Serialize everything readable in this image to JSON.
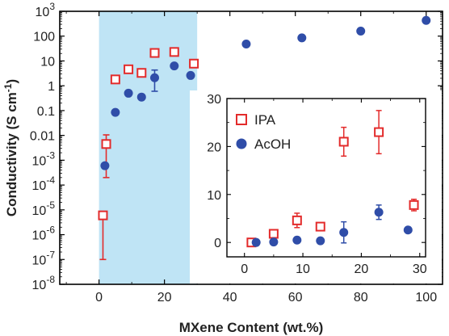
{
  "chart_data": [
    {
      "type": "scatter",
      "xlabel": "MXene Content (wt.%)",
      "ylabel": "Conductivity (S cm",
      "ylabel_sup": "-1",
      "ylabel_close": ")",
      "x_scale": "linear",
      "y_scale": "log",
      "xlim": [
        -12,
        105
      ],
      "ylim_log10": [
        -8,
        3
      ],
      "x_ticks": [
        0,
        20,
        40,
        60,
        80,
        100
      ],
      "x_tick_labels": [
        "0",
        "20",
        "40",
        "60",
        "80",
        "100"
      ],
      "y_ticks_log10": [
        -8,
        -7,
        -6,
        -5,
        -4,
        -3,
        -2,
        -1,
        0,
        1,
        2,
        3
      ],
      "y_tick_labels": [
        {
          "base": "10",
          "sup": "-8"
        },
        {
          "base": "10",
          "sup": "-7"
        },
        {
          "base": "10",
          "sup": "-6"
        },
        {
          "base": "10",
          "sup": "-5"
        },
        {
          "base": "10",
          "sup": "-4"
        },
        {
          "base": "10",
          "sup": "-3"
        },
        {
          "base": "0.01",
          "sup": ""
        },
        {
          "base": "0.1",
          "sup": ""
        },
        {
          "base": "1",
          "sup": ""
        },
        {
          "base": "10",
          "sup": ""
        },
        {
          "base": "100",
          "sup": ""
        },
        {
          "base": "10",
          "sup": "3"
        }
      ],
      "shaded_region_x": [
        0,
        30
      ],
      "shade_color": "#bfe4f5",
      "series": [
        {
          "name": "IPA",
          "marker": "open-square",
          "color": "#e32b2b",
          "x": [
            1.2,
            2.2,
            5,
            9,
            13,
            17,
            23,
            29
          ],
          "y": [
            6e-06,
            0.0045,
            1.8,
            4.6,
            3.3,
            21,
            23,
            7.8
          ],
          "y_err_low": [
            5.9e-06,
            0.0043,
            0.2,
            0.6,
            0.4,
            3,
            5,
            1
          ],
          "y_err_high": [
            0,
            0.006,
            0.2,
            0.8,
            0.6,
            3,
            5,
            1
          ]
        },
        {
          "name": "AcOH",
          "marker": "filled-circle",
          "color": "#2f4da8",
          "x": [
            1.8,
            5,
            9,
            13,
            17,
            23,
            28,
            45,
            62,
            80,
            100
          ],
          "y": [
            0.0006,
            0.085,
            0.5,
            0.35,
            2.1,
            6.3,
            2.6,
            48,
            85,
            160,
            430
          ],
          "y_err_low": [
            0,
            0,
            0,
            0,
            1.5,
            0,
            0,
            0,
            0,
            0,
            0
          ],
          "y_err_high": [
            0,
            0,
            0,
            0,
            2.2,
            0,
            0,
            0,
            0,
            0,
            0
          ]
        }
      ]
    },
    {
      "type": "scatter",
      "inset": true,
      "x_scale": "linear",
      "y_scale": "linear",
      "xlim": [
        -3,
        31
      ],
      "ylim": [
        -3,
        30
      ],
      "x_ticks": [
        0,
        10,
        20,
        30
      ],
      "x_tick_labels": [
        "0",
        "10",
        "20",
        "30"
      ],
      "y_ticks": [
        0,
        10,
        20,
        30
      ],
      "y_tick_labels": [
        "0",
        "10",
        "20",
        "30"
      ],
      "legend": [
        "IPA",
        "AcOH"
      ],
      "legend_position": "top-left",
      "series": [
        {
          "name": "IPA",
          "marker": "open-square",
          "color": "#e32b2b",
          "x": [
            1.2,
            5,
            9,
            13,
            17,
            23,
            29
          ],
          "y": [
            0,
            1.8,
            4.6,
            3.3,
            21,
            23,
            7.8
          ],
          "y_err": [
            0,
            0.3,
            1.5,
            0.5,
            3,
            4.5,
            1.2
          ]
        },
        {
          "name": "AcOH",
          "marker": "filled-circle",
          "color": "#2f4da8",
          "x": [
            2,
            5,
            9,
            13,
            17,
            23,
            28
          ],
          "y": [
            0,
            0.1,
            0.5,
            0.35,
            2.1,
            6.3,
            2.6
          ],
          "y_err": [
            0,
            0,
            0,
            0,
            2.2,
            1.5,
            0
          ]
        }
      ]
    }
  ]
}
